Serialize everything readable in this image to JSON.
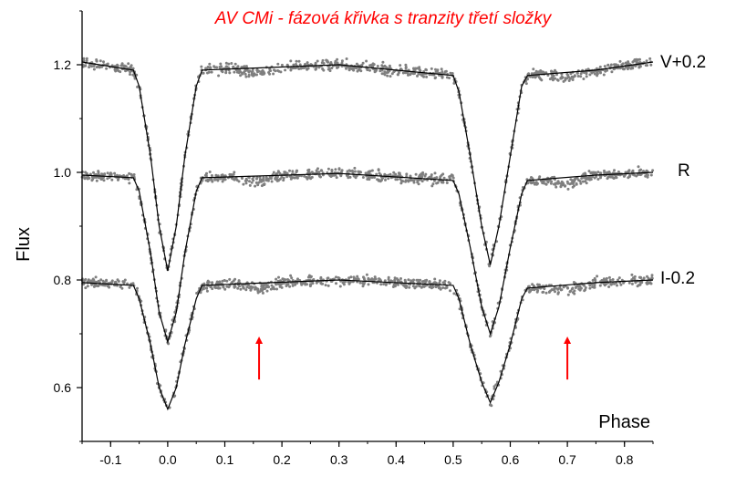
{
  "chart_data": {
    "type": "scatter",
    "title": "AV CMi - fázová křivka s tranzity třetí složky",
    "xlabel": "Phase",
    "ylabel": "Flux",
    "xlim": [
      -0.15,
      0.85
    ],
    "ylim": [
      0.5,
      1.3
    ],
    "x_ticks": [
      -0.1,
      0.0,
      0.1,
      0.2,
      0.3,
      0.4,
      0.5,
      0.6,
      0.7,
      0.8
    ],
    "x_tick_labels": [
      "-0.1",
      "0.0",
      "0.1",
      "0.2",
      "0.3",
      "0.4",
      "0.5",
      "0.6",
      "0.7",
      "0.8"
    ],
    "y_ticks": [
      0.6,
      0.8,
      1.0,
      1.2
    ],
    "y_tick_labels": [
      "0.6",
      "0.8",
      "1.0",
      "1.2"
    ],
    "grid": false,
    "series": [
      {
        "name": "V+0.2",
        "offset": 0.2,
        "primary_min": 0.817,
        "secondary_min": 0.828,
        "model": [
          [
            -0.15,
            1.205
          ],
          [
            -0.06,
            1.19
          ],
          [
            -0.05,
            1.16
          ],
          [
            -0.03,
            1.03
          ],
          [
            -0.015,
            0.9
          ],
          [
            0.0,
            0.817
          ],
          [
            0.015,
            0.9
          ],
          [
            0.03,
            1.03
          ],
          [
            0.05,
            1.16
          ],
          [
            0.06,
            1.19
          ],
          [
            0.3,
            1.2
          ],
          [
            0.5,
            1.18
          ],
          [
            0.51,
            1.15
          ],
          [
            0.53,
            1.03
          ],
          [
            0.55,
            0.9
          ],
          [
            0.565,
            0.828
          ],
          [
            0.58,
            0.9
          ],
          [
            0.6,
            1.03
          ],
          [
            0.62,
            1.16
          ],
          [
            0.63,
            1.18
          ],
          [
            0.75,
            1.19
          ],
          [
            0.85,
            1.205
          ]
        ]
      },
      {
        "name": "R",
        "offset": 0.0,
        "primary_min": 0.685,
        "secondary_min": 0.7,
        "model": [
          [
            -0.15,
            0.995
          ],
          [
            -0.06,
            0.99
          ],
          [
            -0.05,
            0.965
          ],
          [
            -0.03,
            0.85
          ],
          [
            -0.015,
            0.74
          ],
          [
            0.0,
            0.685
          ],
          [
            0.015,
            0.74
          ],
          [
            0.03,
            0.85
          ],
          [
            0.05,
            0.965
          ],
          [
            0.06,
            0.99
          ],
          [
            0.3,
            0.998
          ],
          [
            0.5,
            0.985
          ],
          [
            0.51,
            0.96
          ],
          [
            0.53,
            0.86
          ],
          [
            0.55,
            0.75
          ],
          [
            0.565,
            0.7
          ],
          [
            0.58,
            0.75
          ],
          [
            0.6,
            0.86
          ],
          [
            0.62,
            0.96
          ],
          [
            0.63,
            0.985
          ],
          [
            0.75,
            0.995
          ],
          [
            0.85,
            1.0
          ]
        ]
      },
      {
        "name": "I-0.2",
        "offset": -0.2,
        "primary_min": 0.56,
        "secondary_min": 0.572,
        "model": [
          [
            -0.15,
            0.795
          ],
          [
            -0.06,
            0.79
          ],
          [
            -0.05,
            0.765
          ],
          [
            -0.03,
            0.68
          ],
          [
            -0.015,
            0.6
          ],
          [
            0.0,
            0.56
          ],
          [
            0.015,
            0.6
          ],
          [
            0.03,
            0.68
          ],
          [
            0.05,
            0.765
          ],
          [
            0.06,
            0.79
          ],
          [
            0.3,
            0.8
          ],
          [
            0.5,
            0.79
          ],
          [
            0.51,
            0.765
          ],
          [
            0.53,
            0.68
          ],
          [
            0.55,
            0.61
          ],
          [
            0.565,
            0.572
          ],
          [
            0.58,
            0.61
          ],
          [
            0.6,
            0.68
          ],
          [
            0.62,
            0.765
          ],
          [
            0.63,
            0.785
          ],
          [
            0.75,
            0.795
          ],
          [
            0.85,
            0.8
          ]
        ]
      }
    ],
    "transit_marks": [
      0.16,
      0.7
    ],
    "transit_marks_range": [
      0.615,
      0.695
    ],
    "colors": {
      "points": "#7f7f7f",
      "model": "#000000",
      "title": "#ff0000",
      "arrow": "#ff0000"
    }
  }
}
